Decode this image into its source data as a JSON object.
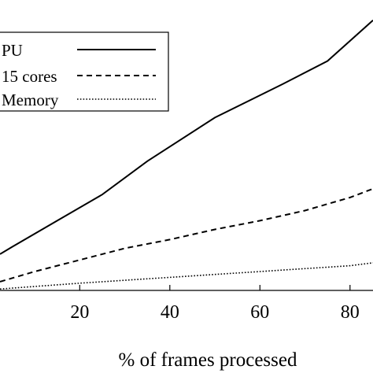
{
  "chart_data": {
    "type": "line",
    "xlabel": "% of frames processed",
    "ylabel": "",
    "xlim": [
      2.3,
      85.1
    ],
    "ylim": [
      0,
      100
    ],
    "x_ticks": [
      20,
      40,
      60,
      80
    ],
    "x_tick_labels": [
      "20",
      "40",
      "60",
      "80"
    ],
    "grid": false,
    "legend_position": "top-left",
    "legend_entries": [
      "PU",
      "15 cores",
      "Memory"
    ],
    "series": [
      {
        "name": "PU",
        "style": "solid",
        "x": [
          2.3,
          5,
          15,
          25,
          35,
          50,
          65,
          75,
          85.1
        ],
        "y": [
          12.5,
          15,
          24,
          33,
          44.5,
          59.5,
          71,
          79,
          93
        ]
      },
      {
        "name": "15 cores",
        "style": "dashed",
        "x": [
          2.3,
          10,
          20,
          30,
          40,
          50,
          60,
          70,
          80,
          85.1
        ],
        "y": [
          3,
          6.5,
          10.5,
          14.5,
          17.5,
          21,
          24,
          27.5,
          32,
          35
        ]
      },
      {
        "name": "Memory",
        "style": "dotted",
        "x": [
          2.3,
          20,
          40,
          60,
          80,
          85.1
        ],
        "y": [
          0.5,
          2.5,
          4.5,
          6.5,
          8.5,
          9.5
        ]
      }
    ]
  }
}
